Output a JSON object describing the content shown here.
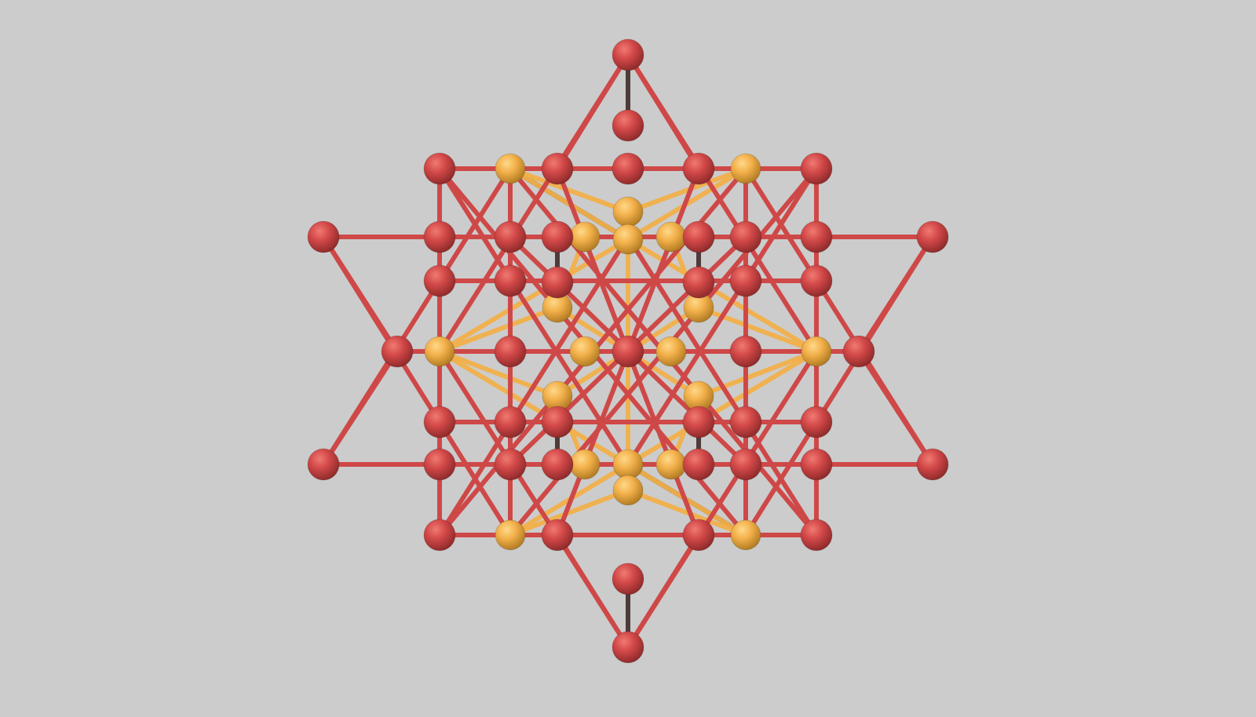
{
  "scene": {
    "background": "#cccccc",
    "primary_color": "#cf4848",
    "secondary_color": "#f2b04a",
    "shadow_color": "#3a2222",
    "primary_atom_count": 45,
    "secondary_atom_count": 20
  }
}
